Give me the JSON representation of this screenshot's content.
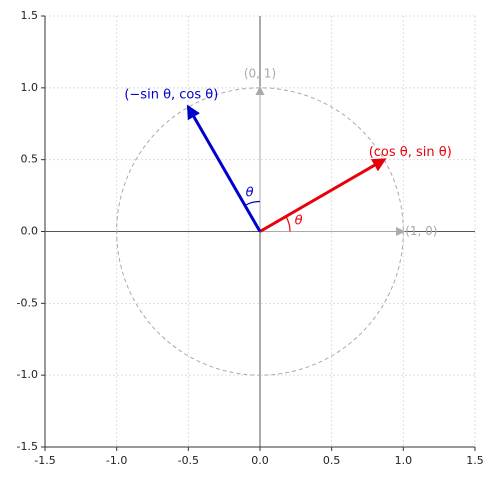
{
  "chart_data": {
    "type": "vector",
    "xlim": [
      -1.5,
      1.5
    ],
    "ylim": [
      -1.5,
      1.5
    ],
    "xticks": [
      {
        "value": -1.5,
        "label": "-1.5"
      },
      {
        "value": -1.0,
        "label": "-1.0"
      },
      {
        "value": -0.5,
        "label": "-0.5"
      },
      {
        "value": 0,
        "label": "0.0"
      },
      {
        "value": 0.5,
        "label": "0.5"
      },
      {
        "value": 1.0,
        "label": "1.0"
      },
      {
        "value": 1.5,
        "label": "1.5"
      }
    ],
    "yticks": [
      {
        "value": -1.5,
        "label": "-1.5"
      },
      {
        "value": -1.0,
        "label": "-1.0"
      },
      {
        "value": -0.5,
        "label": "-0.5"
      },
      {
        "value": 0,
        "label": "0.0"
      },
      {
        "value": 0.5,
        "label": "0.5"
      },
      {
        "value": 1.0,
        "label": "1.0"
      },
      {
        "value": 1.5,
        "label": "1.5"
      }
    ],
    "grid": true,
    "unit_circle": {
      "radius": 1,
      "color": "#aaaaaa"
    },
    "reference_vectors": [
      {
        "name": "(1, 0)",
        "x": 1,
        "y": 0,
        "color": "#aaaaaa"
      },
      {
        "name": "(0, 1)",
        "x": 0,
        "y": 1,
        "color": "#aaaaaa"
      }
    ],
    "series": [
      {
        "name": "(cos θ, sin θ)",
        "color": "#e8000b",
        "x": 0.866,
        "y": 0.5,
        "angle_label": "θ"
      },
      {
        "name": "(−sin θ, cos θ)",
        "color": "#0000cc",
        "x": -0.5,
        "y": 0.866,
        "angle_label": "θ"
      }
    ]
  }
}
